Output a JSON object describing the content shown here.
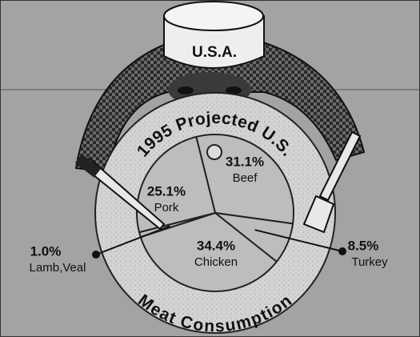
{
  "chart_data": {
    "type": "pie",
    "title": "1995 Projected U.S.",
    "subtitle": "Meat Consumption",
    "hat_label": "U.S.A.",
    "categories": [
      "Beef",
      "Turkey",
      "Chicken",
      "Lamb,Veal",
      "Pork"
    ],
    "values": [
      31.1,
      8.5,
      34.4,
      1.0,
      25.1
    ],
    "value_labels": [
      "31.1%",
      "8.5%",
      "34.4%",
      "1.0%",
      "25.1%"
    ],
    "color": "#bdbdbd"
  }
}
